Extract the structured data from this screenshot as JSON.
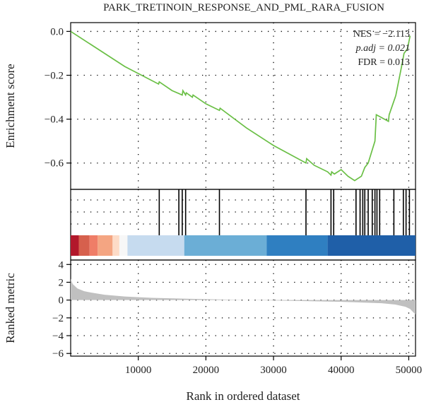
{
  "chart_data": {
    "type": "line",
    "title": "PARK_TRETINOIN_RESPONSE_AND_PML_RARA_FUSION",
    "xlabel": "Rank in ordered dataset",
    "xlim": [
      0,
      51000
    ],
    "x_ticks": [
      10000,
      20000,
      30000,
      40000,
      50000
    ],
    "grid": "dotted",
    "panels": {
      "enrichment": {
        "ylabel": "Enrichment score",
        "ylim": [
          -0.72,
          0.04
        ],
        "y_ticks": [
          0.0,
          -0.2,
          -0.4,
          -0.6
        ],
        "line_color": "#6abf45",
        "series": [
          {
            "x": [
              0,
              4000,
              8000,
              13000,
              13100,
              15000,
              16500,
              16600,
              17000,
              17100,
              18000,
              18100,
              20000,
              22000,
              22100,
              26000,
              30000,
              34800,
              34900,
              36000,
              38000,
              38500,
              38600,
              39000,
              40000,
              41000,
              42000,
              42500,
              43000,
              43500,
              44000,
              44500,
              45000,
              45200,
              47000,
              47100,
              48000,
              48100,
              49000,
              49300,
              49800,
              50200
            ],
            "y": [
              0.0,
              -0.08,
              -0.16,
              -0.24,
              -0.23,
              -0.27,
              -0.29,
              -0.27,
              -0.29,
              -0.28,
              -0.3,
              -0.29,
              -0.33,
              -0.36,
              -0.35,
              -0.44,
              -0.52,
              -0.6,
              -0.58,
              -0.61,
              -0.64,
              -0.655,
              -0.64,
              -0.65,
              -0.63,
              -0.66,
              -0.68,
              -0.67,
              -0.66,
              -0.62,
              -0.6,
              -0.55,
              -0.5,
              -0.38,
              -0.41,
              -0.38,
              -0.3,
              -0.29,
              -0.15,
              -0.1,
              -0.08,
              -0.02
            ]
          }
        ],
        "annotations": [
          "NES = −2.113",
          "p.adj = 0.021",
          "FDR = 0.013"
        ]
      },
      "hits": {
        "positions": [
          13100,
          16000,
          16500,
          17000,
          22000,
          34800,
          38500,
          38900,
          42200,
          42800,
          43200,
          43500,
          44000,
          44600,
          45000,
          45300,
          45700,
          47800,
          49200,
          49600,
          50100
        ]
      },
      "color_bar": {
        "segments": [
          {
            "start": 0,
            "end": 1200,
            "color": "#b2182b"
          },
          {
            "start": 1200,
            "end": 2800,
            "color": "#d6604d"
          },
          {
            "start": 2800,
            "end": 4000,
            "color": "#ef7d67"
          },
          {
            "start": 4000,
            "end": 6200,
            "color": "#f4a582"
          },
          {
            "start": 6200,
            "end": 7200,
            "color": "#fddbc7"
          },
          {
            "start": 7200,
            "end": 8400,
            "color": "#f7f7f7"
          },
          {
            "start": 8400,
            "end": 16800,
            "color": "#c6dbef"
          },
          {
            "start": 16800,
            "end": 29000,
            "color": "#6baed6"
          },
          {
            "start": 29000,
            "end": 38000,
            "color": "#2f7fc1"
          },
          {
            "start": 38000,
            "end": 51000,
            "color": "#1f5fa8"
          }
        ]
      },
      "ranked_metric": {
        "ylabel": "Ranked metric",
        "ylim": [
          -6.3,
          4.5
        ],
        "y_ticks": [
          4,
          2,
          0,
          -2,
          -4,
          -6
        ],
        "fill_color": "#c0c0c0",
        "series": [
          {
            "x": [
              0,
              300,
              1000,
              2000,
              3000,
              5000,
              8000,
              12000,
              20000,
              30000,
              40000,
              46000,
              48000,
              49500,
              50200,
              50700,
              51000
            ],
            "y": [
              2.4,
              1.8,
              1.3,
              1.0,
              0.85,
              0.6,
              0.4,
              0.25,
              0.1,
              -0.05,
              -0.2,
              -0.35,
              -0.5,
              -0.75,
              -1.0,
              -1.4,
              -1.6
            ]
          }
        ]
      }
    }
  }
}
